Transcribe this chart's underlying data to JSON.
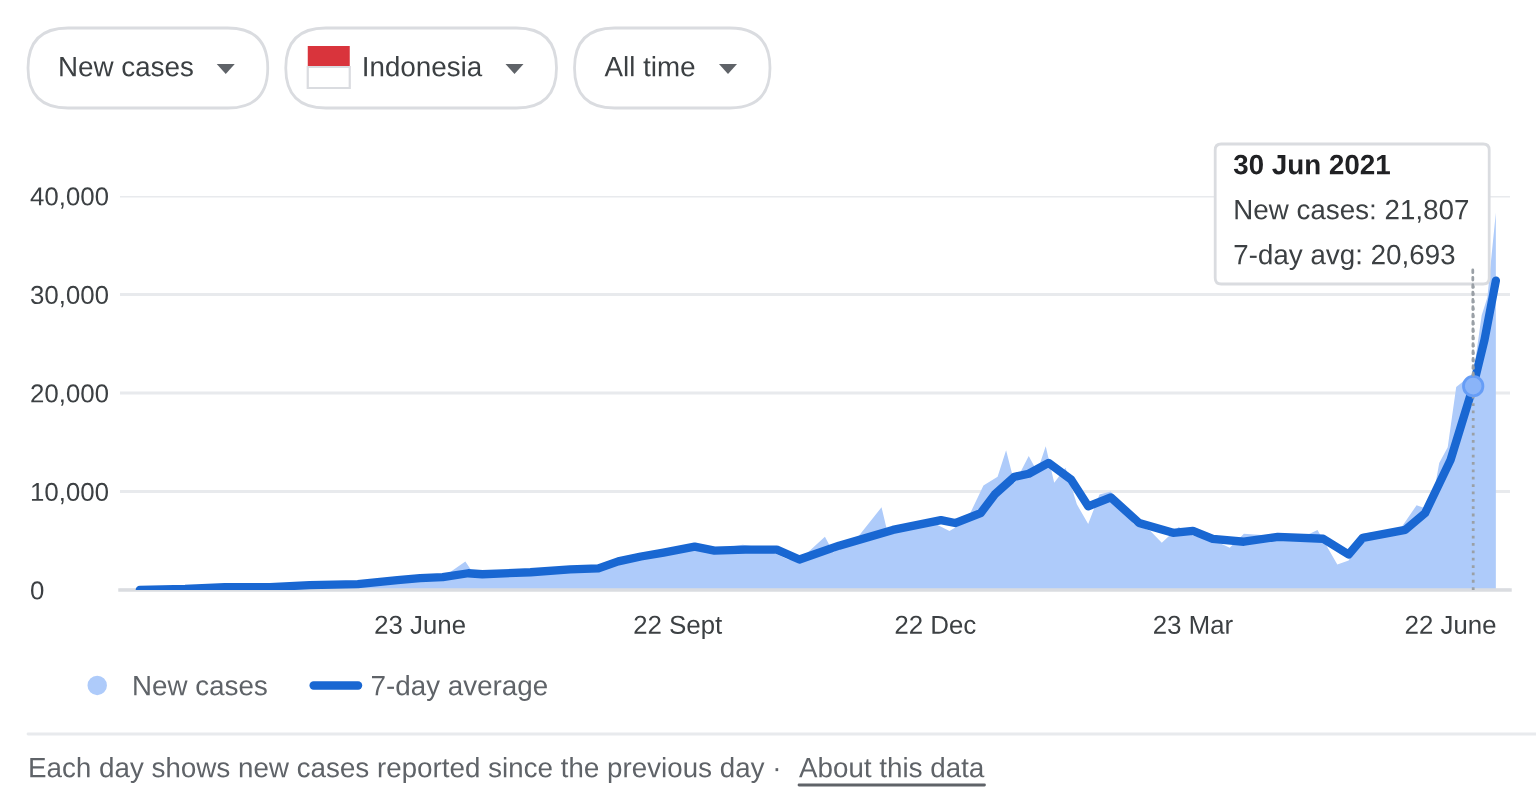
{
  "chart_data": {
    "type": "line",
    "series": [
      {
        "name": "New cases",
        "type": "area",
        "color": "#aecbfa",
        "x": [
          "2020-03-16",
          "2020-04-01",
          "2020-04-15",
          "2020-05-01",
          "2020-05-15",
          "2020-06-01",
          "2020-06-15",
          "2020-06-23",
          "2020-07-01",
          "2020-07-09",
          "2020-07-12",
          "2020-07-25",
          "2020-08-05",
          "2020-08-15",
          "2020-08-25",
          "2020-09-01",
          "2020-09-10",
          "2020-09-20",
          "2020-09-25",
          "2020-10-01",
          "2020-10-10",
          "2020-10-15",
          "2020-10-22",
          "2020-10-31",
          "2020-11-05",
          "2020-11-13",
          "2020-11-16",
          "2020-11-25",
          "2020-12-03",
          "2020-12-05",
          "2020-12-15",
          "2020-12-20",
          "2020-12-27",
          "2021-01-02",
          "2021-01-08",
          "2021-01-13",
          "2021-01-16",
          "2021-01-19",
          "2021-01-24",
          "2021-01-27",
          "2021-01-30",
          "2021-02-02",
          "2021-02-06",
          "2021-02-10",
          "2021-02-14",
          "2021-02-18",
          "2021-02-22",
          "2021-02-26",
          "2021-03-02",
          "2021-03-08",
          "2021-03-12",
          "2021-03-18",
          "2021-03-23",
          "2021-03-30",
          "2021-04-05",
          "2021-04-10",
          "2021-04-20",
          "2021-05-01",
          "2021-05-06",
          "2021-05-13",
          "2021-05-17",
          "2021-05-22",
          "2021-05-29",
          "2021-06-04",
          "2021-06-10",
          "2021-06-15",
          "2021-06-18",
          "2021-06-21",
          "2021-06-24",
          "2021-06-27",
          "2021-06-30",
          "2021-07-03",
          "2021-07-05",
          "2021-07-08"
        ],
        "values": [
          100,
          200,
          300,
          400,
          500,
          600,
          1000,
          1100,
          1300,
          2900,
          1600,
          1700,
          1800,
          2100,
          2300,
          3000,
          3400,
          4000,
          4600,
          4300,
          4400,
          4600,
          4300,
          3100,
          3300,
          5400,
          3800,
          5500,
          8400,
          6000,
          6700,
          7000,
          6000,
          7000,
          10600,
          11500,
          14200,
          10800,
          13600,
          12000,
          14600,
          10900,
          12400,
          8700,
          6700,
          9700,
          10000,
          8200,
          6700,
          6000,
          4800,
          6400,
          5500,
          5100,
          4300,
          5700,
          5500,
          5400,
          6100,
          2600,
          3000,
          5700,
          6000,
          6100,
          8600,
          8100,
          12900,
          14500,
          20600,
          21300,
          21807,
          27900,
          29700,
          38300
        ]
      },
      {
        "name": "7-day average",
        "color": "#1967d2",
        "x": [
          "2020-03-16",
          "2020-04-01",
          "2020-04-15",
          "2020-05-01",
          "2020-05-15",
          "2020-06-01",
          "2020-06-15",
          "2020-06-23",
          "2020-07-01",
          "2020-07-10",
          "2020-07-15",
          "2020-08-01",
          "2020-08-15",
          "2020-08-25",
          "2020-09-01",
          "2020-09-09",
          "2020-09-17",
          "2020-09-28",
          "2020-10-05",
          "2020-10-16",
          "2020-10-27",
          "2020-11-04",
          "2020-11-18",
          "2020-12-07",
          "2020-12-24",
          "2020-12-29",
          "2021-01-07",
          "2021-01-12",
          "2021-01-19",
          "2021-01-24",
          "2021-01-31",
          "2021-02-08",
          "2021-02-14",
          "2021-02-22",
          "2021-03-04",
          "2021-03-16",
          "2021-03-23",
          "2021-03-30",
          "2021-04-10",
          "2021-04-22",
          "2021-05-08",
          "2021-05-17",
          "2021-05-22",
          "2021-06-06",
          "2021-06-13",
          "2021-06-22",
          "2021-06-30",
          "2021-07-04",
          "2021-07-08"
        ],
        "values": [
          0,
          100,
          300,
          300,
          500,
          600,
          1000,
          1200,
          1300,
          1700,
          1600,
          1800,
          2100,
          2200,
          2900,
          3400,
          3800,
          4400,
          4000,
          4100,
          4100,
          3100,
          4500,
          6100,
          7100,
          6800,
          7800,
          9700,
          11500,
          11800,
          12900,
          11200,
          8500,
          9400,
          6800,
          5800,
          6000,
          5200,
          4900,
          5400,
          5200,
          3600,
          5300,
          6100,
          7800,
          13200,
          20693,
          25400,
          31400
        ]
      }
    ],
    "xlim": [
      "2020-03-09",
      "2021-07-13"
    ],
    "xticks": [
      {
        "value": "2020-06-23",
        "label": "23 June"
      },
      {
        "value": "2020-09-22",
        "label": "22 Sept"
      },
      {
        "value": "2020-12-22",
        "label": "22 Dec"
      },
      {
        "value": "2021-03-23",
        "label": "23 Mar"
      },
      {
        "value": "2021-06-22",
        "label": "22 June"
      }
    ],
    "ylim": [
      0,
      40000
    ],
    "yticks": [
      0,
      {
        "value": 10000,
        "label": "10,000"
      },
      {
        "value": 20000,
        "label": "20,000"
      },
      {
        "value": 30000,
        "label": "30,000"
      },
      {
        "value": 40000,
        "label": "40,000"
      }
    ],
    "grid": "y",
    "legend": "bottom",
    "ref_lines": [
      {
        "axis": "x",
        "value": "2021-06-30",
        "color": "#9aa0a6",
        "line_style": "dotted"
      }
    ],
    "annotations": [
      "New cases",
      "Indonesia",
      "All time",
      {
        "text": "30 Jun 2021\nNew cases: 21,807\n7-day avg: 20,693",
        "x": "2021-06-30",
        "y": 20693
      },
      "Each day shows new cases reported since the previous day ·",
      "About this data"
    ]
  }
}
